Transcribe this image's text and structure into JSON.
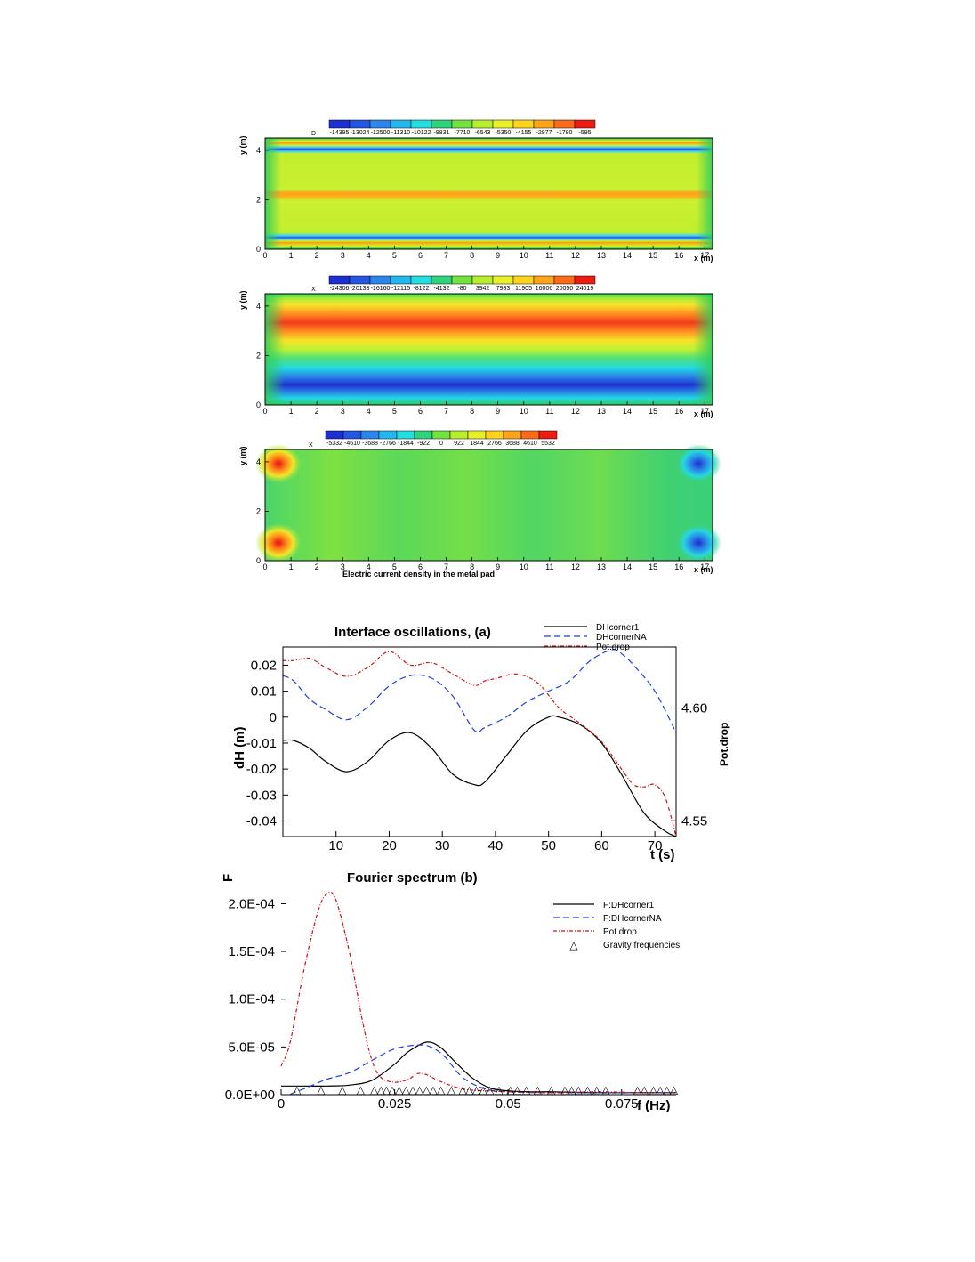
{
  "chart_data": [
    {
      "type": "heatmap",
      "name": "contour-1",
      "colorbar": {
        "variable": "D",
        "labels": [
          "-14395",
          "-13024",
          "-12500",
          "-11310",
          "-10122",
          "-9831",
          "-7710",
          "-6543",
          "-5350",
          "-4155",
          "-2977",
          "-1780",
          "-595"
        ]
      },
      "field": "two horizontal low bands near y=0.5 and y=4, mid-level interior, high band at y=2.2",
      "xticks": [
        "0",
        "1",
        "2",
        "3",
        "4",
        "5",
        "6",
        "7",
        "8",
        "9",
        "10",
        "11",
        "12",
        "13",
        "14",
        "15",
        "16",
        "17"
      ],
      "yticks": [
        "0",
        "2",
        "4"
      ],
      "xlabel": "x (m)",
      "ylabel": "y (m)",
      "xlim": [
        0,
        17.3
      ],
      "ylim": [
        0,
        4.5
      ]
    },
    {
      "type": "heatmap",
      "name": "contour-2",
      "colorbar": {
        "variable": "X",
        "labels": [
          "-24306",
          "-20133",
          "-16160",
          "-12115",
          "-8122",
          "-4132",
          "-80",
          "3942",
          "7933",
          "11905",
          "16006",
          "20050",
          "24019"
        ]
      },
      "field": "high band around y=3.6, low band around y=0.8, transition through y=2.2",
      "xticks": [
        "0",
        "1",
        "2",
        "3",
        "4",
        "5",
        "6",
        "7",
        "8",
        "9",
        "10",
        "11",
        "12",
        "13",
        "14",
        "15",
        "16",
        "17"
      ],
      "yticks": [
        "0",
        "2",
        "4"
      ],
      "xlabel": "x (m)",
      "ylabel": "y (m)",
      "xlim": [
        0,
        17.3
      ],
      "ylim": [
        0,
        4.5
      ]
    },
    {
      "type": "heatmap",
      "name": "contour-3",
      "colorbar": {
        "variable": "X",
        "labels": [
          "-5332",
          "-4610",
          "-3688",
          "-2766",
          "-1844",
          "-922",
          "0",
          "922",
          "1844",
          "2766",
          "3688",
          "4610",
          "5532"
        ]
      },
      "field": "positive peaks near (0.5,0.6) and (0.5,4), negative peaks near (16.5,0.6) and (16.5,4), near-zero elsewhere",
      "xticks": [
        "0",
        "1",
        "2",
        "3",
        "4",
        "5",
        "6",
        "7",
        "8",
        "9",
        "10",
        "11",
        "12",
        "13",
        "14",
        "15",
        "16",
        "17"
      ],
      "yticks": [
        "0",
        "2",
        "4"
      ],
      "xlabel": "x (m)",
      "ylabel": "y (m)",
      "caption": "Electric current density in the metal pad",
      "xlim": [
        0,
        17.3
      ],
      "ylim": [
        0,
        4.5
      ]
    },
    {
      "type": "line",
      "name": "interface-oscillations",
      "title": "Interface oscillations,  (a)",
      "xlabel": "t (s)",
      "ylabel": "dH (m)",
      "ylabel_right": "Pot.drop",
      "xlim": [
        0,
        74
      ],
      "ylim": [
        -0.046,
        0.027
      ],
      "ylim_right": [
        4.543,
        4.627
      ],
      "xticks": [
        "10",
        "20",
        "30",
        "40",
        "50",
        "60",
        "70"
      ],
      "yticks": [
        "0.02",
        "0.01",
        "0",
        "-0.01",
        "-0.02",
        "-0.03",
        "-0.04"
      ],
      "yticks_right": [
        "4.60",
        "4.55"
      ],
      "series": [
        {
          "name": "DHcorner1",
          "axis": "left",
          "color": "#000000",
          "dash": "",
          "x": [
            0,
            2,
            5,
            8,
            12,
            16,
            20,
            24,
            28,
            32,
            36,
            38,
            42,
            46,
            50,
            52,
            56,
            60,
            64,
            68,
            72,
            74
          ],
          "y": [
            -0.009,
            -0.009,
            -0.012,
            -0.017,
            -0.021,
            -0.017,
            -0.009,
            -0.006,
            -0.012,
            -0.022,
            -0.026,
            -0.025,
            -0.015,
            -0.005,
            0.0,
            0.0,
            -0.003,
            -0.01,
            -0.023,
            -0.037,
            -0.044,
            -0.046
          ]
        },
        {
          "name": "DHcornerNA",
          "axis": "left",
          "color": "#1f3fd8",
          "dash": "7,4",
          "x": [
            0,
            2,
            5,
            8,
            12,
            16,
            20,
            24,
            28,
            32,
            36,
            38,
            42,
            46,
            50,
            54,
            58,
            62,
            64,
            66,
            70,
            74
          ],
          "y": [
            0.016,
            0.014,
            0.007,
            0.003,
            -0.001,
            0.004,
            0.012,
            0.016,
            0.015,
            0.008,
            -0.005,
            -0.004,
            0.0,
            0.006,
            0.01,
            0.014,
            0.022,
            0.026,
            0.024,
            0.02,
            0.01,
            -0.006
          ]
        },
        {
          "name": "Pot.drop",
          "axis": "right",
          "color": "#cc1111",
          "dash": "4,2,1,2",
          "x": [
            0,
            2,
            5,
            8,
            12,
            16,
            20,
            24,
            28,
            32,
            36,
            38,
            40,
            44,
            48,
            52,
            56,
            60,
            64,
            66,
            68,
            70,
            72,
            74
          ],
          "y": [
            4.621,
            4.621,
            4.622,
            4.618,
            4.614,
            4.618,
            4.625,
            4.619,
            4.62,
            4.615,
            4.61,
            4.612,
            4.613,
            4.615,
            4.611,
            4.6,
            4.593,
            4.585,
            4.572,
            4.566,
            4.565,
            4.566,
            4.56,
            4.543
          ]
        }
      ]
    },
    {
      "type": "line",
      "name": "fourier-spectrum",
      "title": "Fourier spectrum (b)",
      "xlabel": "f (Hz)",
      "ylabel": "F",
      "xlim": [
        0,
        0.087
      ],
      "ylim": [
        0,
        0.00022
      ],
      "xticks": [
        "0",
        "0.025",
        "0.05",
        "0.075"
      ],
      "yticks": [
        "0.0E+00",
        "5.0E-05",
        "1.0E-04",
        "1.5E-04",
        "2.0E-04"
      ],
      "series": [
        {
          "name": "F:DHcorner1",
          "color": "#000000",
          "dash": "",
          "x": [
            0,
            0.005,
            0.01,
            0.015,
            0.02,
            0.025,
            0.028,
            0.032,
            0.035,
            0.038,
            0.042,
            0.046,
            0.05,
            0.055,
            0.06,
            0.07,
            0.08,
            0.087
          ],
          "y": [
            9e-06,
            9e-06,
            9e-06,
            1e-05,
            1.5e-05,
            3.2e-05,
            4.5e-05,
            5.5e-05,
            5e-05,
            3.6e-05,
            1.8e-05,
            7e-06,
            4e-06,
            3e-06,
            3e-06,
            2e-06,
            2e-06,
            2e-06
          ]
        },
        {
          "name": "F:DHcornerNA",
          "color": "#1f3fd8",
          "dash": "7,4",
          "x": [
            0.002,
            0.006,
            0.01,
            0.015,
            0.02,
            0.025,
            0.03,
            0.033,
            0.036,
            0.04,
            0.045,
            0.05,
            0.06,
            0.07,
            0.08,
            0.087
          ],
          "y": [
            5e-07,
            8e-06,
            1.6e-05,
            2.3e-05,
            3.6e-05,
            4.8e-05,
            5.2e-05,
            5e-05,
            4e-05,
            1.8e-05,
            6e-06,
            3e-06,
            2e-06,
            2e-06,
            2e-06,
            2e-06
          ]
        },
        {
          "name": "Pot.drop",
          "color": "#cc1111",
          "dash": "4,2,1,2",
          "x": [
            0,
            0.002,
            0.005,
            0.008,
            0.01,
            0.012,
            0.015,
            0.018,
            0.02,
            0.022,
            0.025,
            0.028,
            0.03,
            0.032,
            0.035,
            0.04,
            0.045,
            0.05,
            0.06,
            0.07,
            0.08,
            0.087
          ],
          "y": [
            3e-05,
            5.5e-05,
            0.00013,
            0.00019,
            0.00021,
            0.000205,
            0.00015,
            7.5e-05,
            3.6e-05,
            1.8e-05,
            1.3e-05,
            1.6e-05,
            2.2e-05,
            2.1e-05,
            1.4e-05,
            6e-06,
            4e-06,
            3e-06,
            2e-06,
            3e-06,
            2e-06,
            2e-06
          ]
        }
      ],
      "markers": {
        "name": "Gravity frequencies",
        "symbol": "△",
        "y": 5e-07,
        "x": [
          0.0035,
          0.0088,
          0.0135,
          0.0175,
          0.0205,
          0.022,
          0.0232,
          0.0245,
          0.026,
          0.0275,
          0.029,
          0.0305,
          0.032,
          0.0335,
          0.0352,
          0.0375,
          0.04,
          0.0415,
          0.043,
          0.0445,
          0.046,
          0.048,
          0.0505,
          0.052,
          0.054,
          0.0565,
          0.0595,
          0.0625,
          0.064,
          0.0655,
          0.0675,
          0.0695,
          0.0715,
          0.0785,
          0.08,
          0.082,
          0.0835,
          0.085,
          0.0865
        ]
      }
    }
  ]
}
